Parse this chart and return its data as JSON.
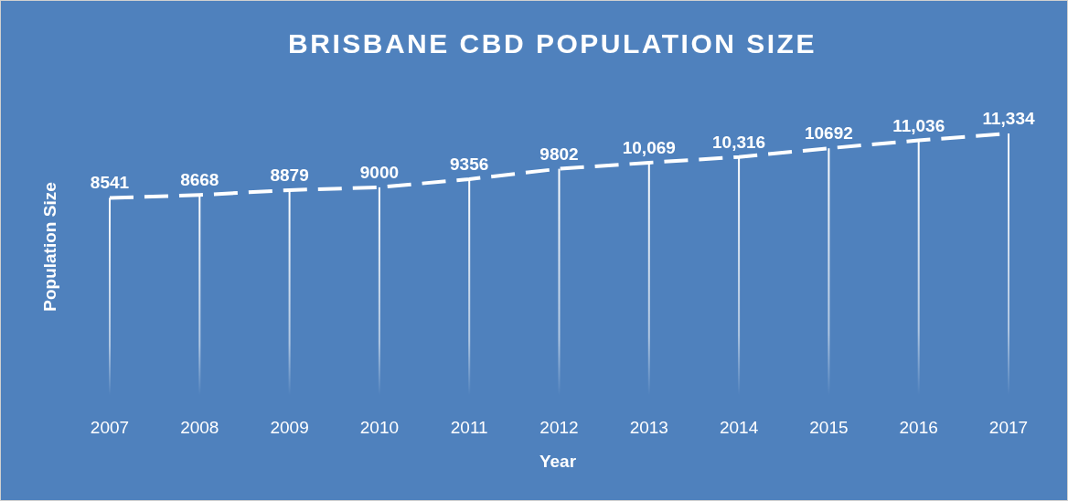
{
  "chart_data": {
    "type": "line",
    "title": "BRISBANE CBD POPULATION SIZE",
    "xlabel": "Year",
    "ylabel": "Population Size",
    "categories": [
      "2007",
      "2008",
      "2009",
      "2010",
      "2011",
      "2012",
      "2013",
      "2014",
      "2015",
      "2016",
      "2017"
    ],
    "series": [
      {
        "type": "bar",
        "color": "#ffffff",
        "values": [
          8541,
          8668,
          8879,
          9000,
          9356,
          9802,
          10069,
          10316,
          10692,
          11036,
          11334
        ]
      },
      {
        "color": "#ffffff",
        "values": [
          8541,
          8668,
          8879,
          9000,
          9356,
          9802,
          10069,
          10316,
          10692,
          11036,
          11334
        ],
        "value_labels": [
          "8541",
          "8668",
          "8879",
          "9000",
          "9356",
          "9802",
          "10,069",
          "10,316",
          "10692",
          "11,036",
          "11,334"
        ]
      }
    ],
    "line_style": "dashed",
    "marker": "none",
    "grid": false,
    "legend": false
  }
}
